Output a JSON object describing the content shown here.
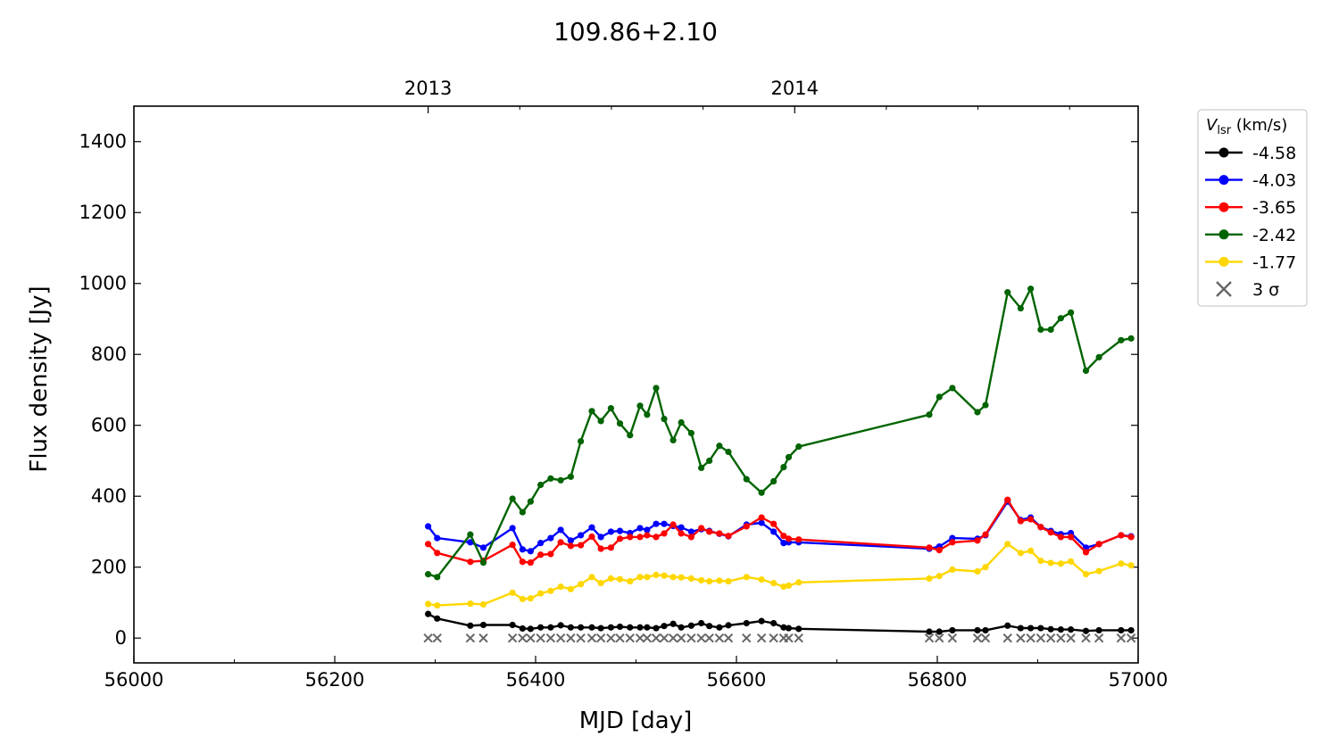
{
  "chart_data": {
    "type": "line",
    "title": "109.86+2.10",
    "xlabel": "MJD [day]",
    "ylabel": "Flux density [Jy]",
    "xlim": [
      56000,
      57000
    ],
    "ylim": [
      -70,
      1500
    ],
    "xticks": [
      56000,
      56200,
      56400,
      56600,
      56800,
      57000
    ],
    "yticks": [
      0,
      200,
      400,
      600,
      800,
      1000,
      1200,
      1400
    ],
    "top_axis": {
      "labels": [
        {
          "label": "2013",
          "mjd": 56293
        },
        {
          "label": "2014",
          "mjd": 56658
        }
      ]
    },
    "legend": {
      "title_main": "V",
      "title_sub": "lsr",
      "title_rest": " (km/s)",
      "placement": "outside-right-top"
    },
    "series": [
      {
        "name": "-4.58",
        "color": "#000000",
        "x": [
          56293,
          56302,
          56335,
          56348,
          56377,
          56387,
          56395,
          56405,
          56415,
          56425,
          56435,
          56445,
          56456,
          56465,
          56475,
          56484,
          56494,
          56504,
          56511,
          56520,
          56528,
          56537,
          56545,
          56555,
          56565,
          56573,
          56583,
          56592,
          56610,
          56625,
          56637,
          56647,
          56652,
          56662,
          56792,
          56802,
          56815,
          56840,
          56848,
          56870,
          56883,
          56893,
          56903,
          56913,
          56923,
          56933,
          56948,
          56961,
          56983,
          56993
        ],
        "y": [
          68,
          55,
          35,
          37,
          37,
          27,
          26,
          30,
          30,
          36,
          30,
          30,
          30,
          28,
          30,
          32,
          30,
          30,
          30,
          28,
          34,
          40,
          30,
          35,
          42,
          34,
          30,
          36,
          42,
          48,
          42,
          30,
          28,
          26,
          18,
          18,
          22,
          22,
          22,
          35,
          28,
          28,
          28,
          25,
          24,
          24,
          20,
          22,
          22,
          22
        ]
      },
      {
        "name": "-4.03",
        "color": "#0000ff",
        "x": [
          56293,
          56302,
          56335,
          56348,
          56377,
          56387,
          56395,
          56405,
          56415,
          56425,
          56435,
          56445,
          56456,
          56465,
          56475,
          56484,
          56494,
          56504,
          56511,
          56520,
          56528,
          56537,
          56545,
          56555,
          56565,
          56573,
          56583,
          56592,
          56610,
          56625,
          56637,
          56647,
          56652,
          56662,
          56792,
          56802,
          56815,
          56840,
          56848,
          56870,
          56883,
          56893,
          56903,
          56913,
          56923,
          56933,
          56948,
          56961,
          56983,
          56993
        ],
        "y": [
          315,
          282,
          270,
          255,
          310,
          250,
          245,
          268,
          282,
          305,
          275,
          290,
          312,
          285,
          300,
          302,
          296,
          310,
          305,
          322,
          322,
          316,
          312,
          300,
          307,
          302,
          294,
          287,
          320,
          325,
          300,
          268,
          270,
          270,
          252,
          258,
          282,
          280,
          290,
          385,
          333,
          340,
          313,
          302,
          293,
          296,
          255,
          265,
          290,
          287
        ]
      },
      {
        "name": "-3.65",
        "color": "#ff0000",
        "x": [
          56293,
          56302,
          56335,
          56348,
          56377,
          56387,
          56395,
          56405,
          56415,
          56425,
          56435,
          56445,
          56456,
          56465,
          56475,
          56484,
          56494,
          56504,
          56511,
          56520,
          56528,
          56537,
          56545,
          56555,
          56565,
          56573,
          56583,
          56592,
          56610,
          56625,
          56637,
          56647,
          56652,
          56662,
          56792,
          56802,
          56815,
          56840,
          56848,
          56870,
          56883,
          56893,
          56903,
          56913,
          56923,
          56933,
          56948,
          56961,
          56983,
          56993
        ],
        "y": [
          265,
          240,
          215,
          218,
          263,
          215,
          213,
          235,
          237,
          270,
          260,
          262,
          286,
          252,
          255,
          280,
          285,
          285,
          290,
          285,
          295,
          320,
          295,
          285,
          310,
          300,
          295,
          288,
          315,
          340,
          322,
          288,
          280,
          278,
          255,
          248,
          270,
          275,
          292,
          390,
          330,
          335,
          313,
          298,
          285,
          285,
          242,
          265,
          290,
          285
        ]
      },
      {
        "name": "-2.42",
        "color": "#006400",
        "x": [
          56293,
          56302,
          56335,
          56348,
          56377,
          56387,
          56395,
          56405,
          56415,
          56425,
          56435,
          56445,
          56456,
          56465,
          56475,
          56484,
          56494,
          56504,
          56511,
          56520,
          56528,
          56537,
          56545,
          56555,
          56565,
          56573,
          56583,
          56592,
          56610,
          56625,
          56637,
          56647,
          56652,
          56662,
          56792,
          56802,
          56815,
          56840,
          56848,
          56870,
          56883,
          56893,
          56903,
          56913,
          56923,
          56933,
          56948,
          56961,
          56983,
          56993
        ],
        "y": [
          180,
          172,
          292,
          213,
          393,
          355,
          385,
          432,
          450,
          445,
          455,
          555,
          640,
          612,
          648,
          605,
          572,
          655,
          630,
          705,
          618,
          558,
          608,
          578,
          480,
          500,
          542,
          525,
          448,
          410,
          442,
          482,
          510,
          540,
          630,
          680,
          705,
          637,
          657,
          975,
          930,
          985,
          870,
          870,
          902,
          918,
          754,
          792,
          840,
          845
        ]
      },
      {
        "name": "-1.77",
        "color": "#ffd700",
        "x": [
          56293,
          56302,
          56335,
          56348,
          56377,
          56387,
          56395,
          56405,
          56415,
          56425,
          56435,
          56445,
          56456,
          56465,
          56475,
          56484,
          56494,
          56504,
          56511,
          56520,
          56528,
          56537,
          56545,
          56555,
          56565,
          56573,
          56583,
          56592,
          56610,
          56625,
          56637,
          56647,
          56652,
          56662,
          56792,
          56802,
          56815,
          56840,
          56848,
          56870,
          56883,
          56893,
          56903,
          56913,
          56923,
          56933,
          56948,
          56961,
          56983,
          56993
        ],
        "y": [
          96,
          92,
          97,
          95,
          128,
          110,
          112,
          126,
          133,
          145,
          138,
          152,
          172,
          155,
          168,
          166,
          160,
          172,
          172,
          178,
          176,
          172,
          171,
          168,
          163,
          160,
          162,
          160,
          172,
          165,
          155,
          145,
          148,
          157,
          168,
          175,
          193,
          188,
          200,
          265,
          240,
          246,
          218,
          212,
          210,
          216,
          180,
          189,
          210,
          205
        ]
      }
    ],
    "sigma_marker": {
      "name": "3 σ",
      "color": "#666666",
      "y": 0,
      "x": [
        56293,
        56302,
        56335,
        56348,
        56377,
        56387,
        56395,
        56405,
        56415,
        56425,
        56435,
        56445,
        56456,
        56465,
        56475,
        56484,
        56494,
        56504,
        56511,
        56520,
        56528,
        56537,
        56545,
        56555,
        56565,
        56573,
        56583,
        56592,
        56610,
        56625,
        56637,
        56647,
        56652,
        56662,
        56792,
        56802,
        56815,
        56840,
        56848,
        56870,
        56883,
        56893,
        56903,
        56913,
        56923,
        56933,
        56948,
        56961,
        56983,
        56993
      ]
    }
  }
}
